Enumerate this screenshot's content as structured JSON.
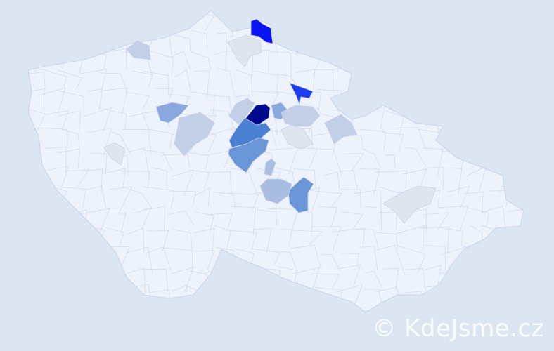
{
  "watermark": "© KdeJsme.cz",
  "colors": {
    "background": "#dce6f2",
    "land": "#eef2fa",
    "border": "#c9d3ec",
    "scale": [
      "#dfe5ef",
      "#c3cfe6",
      "#a9bde2",
      "#8aa8de",
      "#6a96d8",
      "#4a7fd2",
      "#1e3cf0",
      "#0a14f2",
      "#000a8c"
    ]
  },
  "regions": [
    {
      "id": "north-top",
      "level": 7
    },
    {
      "id": "north-east",
      "level": 6
    },
    {
      "id": "center-dark",
      "level": 8
    },
    {
      "id": "center-mid",
      "level": 5
    },
    {
      "id": "center-south",
      "level": 4
    },
    {
      "id": "south-mid",
      "level": 4
    },
    {
      "id": "west-mid",
      "level": 3
    },
    {
      "id": "center-right",
      "level": 3
    },
    {
      "id": "south-left",
      "level": 2
    },
    {
      "id": "east-mid",
      "level": 1
    },
    {
      "id": "center-wide",
      "level": 1
    },
    {
      "id": "west-cluster",
      "level": 1
    },
    {
      "id": "north-west",
      "level": 1
    },
    {
      "id": "north-pale",
      "level": 0
    },
    {
      "id": "center-pale",
      "level": 0
    },
    {
      "id": "east-pale",
      "level": 0
    },
    {
      "id": "west-pale",
      "level": 0
    },
    {
      "id": "center-light",
      "level": 1
    },
    {
      "id": "small-south",
      "level": 2
    }
  ]
}
